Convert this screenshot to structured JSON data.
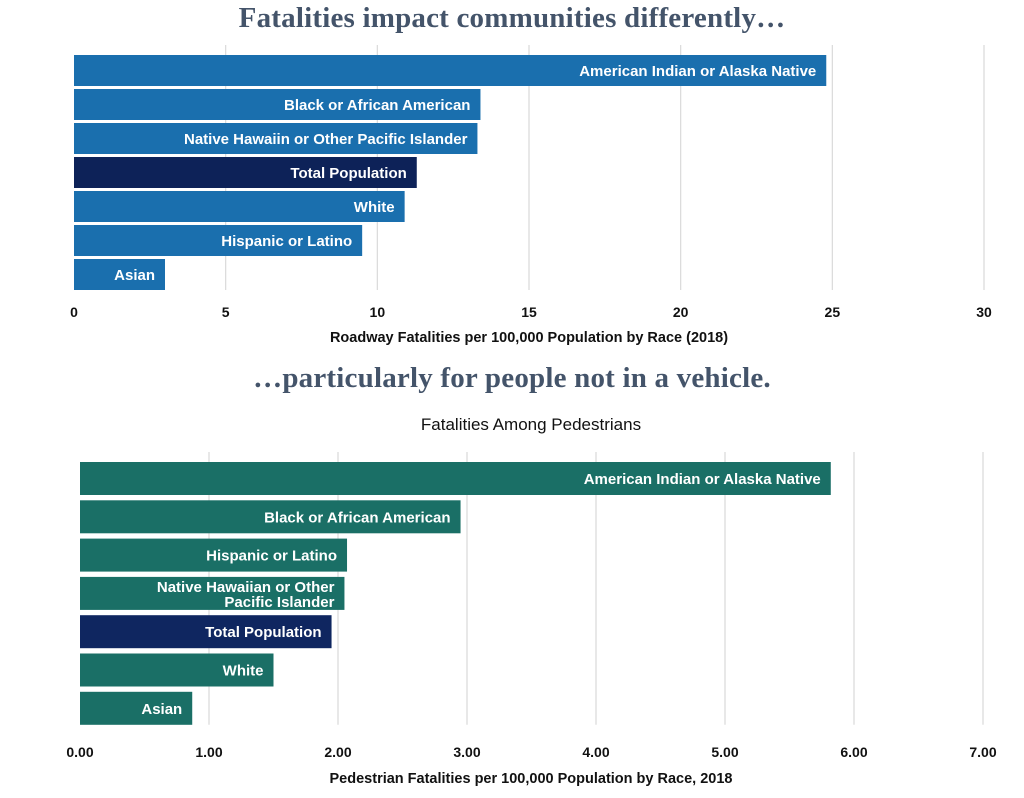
{
  "headlines": {
    "top": "Fatalities impact communities differently…",
    "bottom": "…particularly for people not in a vehicle."
  },
  "colors": {
    "teal_blue": "#1a6fae",
    "navy": "#0d2258",
    "teal_green": "#1a6f66",
    "navy_2": "#0f2660",
    "headline": "#44546a"
  },
  "chart_data": [
    {
      "type": "bar",
      "orientation": "horizontal",
      "title": "",
      "xlabel": "Roadway Fatalities per 100,000 Population by Race (2018)",
      "ylabel": "",
      "categories": [
        "American Indian or Alaska Native",
        "Black or African American",
        "Native Hawaiin or Other Pacific Islander",
        "Total Population",
        "White",
        "Hispanic or Latino",
        "Asian"
      ],
      "values": [
        24.8,
        13.4,
        13.3,
        11.3,
        10.9,
        9.5,
        3.0
      ],
      "highlight": "Total Population",
      "xlim": [
        0,
        30
      ],
      "ticks": [
        0,
        5,
        10,
        15,
        20,
        25,
        30
      ],
      "tick_labels": [
        "0",
        "5",
        "10",
        "15",
        "20",
        "25",
        "30"
      ],
      "grid": true
    },
    {
      "type": "bar",
      "orientation": "horizontal",
      "title": "Fatalities Among Pedestrians",
      "xlabel": "Pedestrian Fatalities per 100,000 Population by Race, 2018",
      "ylabel": "",
      "categories": [
        "American Indian or Alaska Native",
        "Black or African American",
        "Hispanic or Latino",
        "Native Hawaiian or Other Pacific Islander",
        "Total Population",
        "White",
        "Asian"
      ],
      "values": [
        5.82,
        2.95,
        2.07,
        2.05,
        1.95,
        1.5,
        0.87
      ],
      "highlight": "Total Population",
      "xlim": [
        0,
        7
      ],
      "ticks": [
        0,
        1,
        2,
        3,
        4,
        5,
        6,
        7
      ],
      "tick_labels": [
        "0.00",
        "1.00",
        "2.00",
        "3.00",
        "4.00",
        "5.00",
        "6.00",
        "7.00"
      ],
      "grid": true
    }
  ]
}
